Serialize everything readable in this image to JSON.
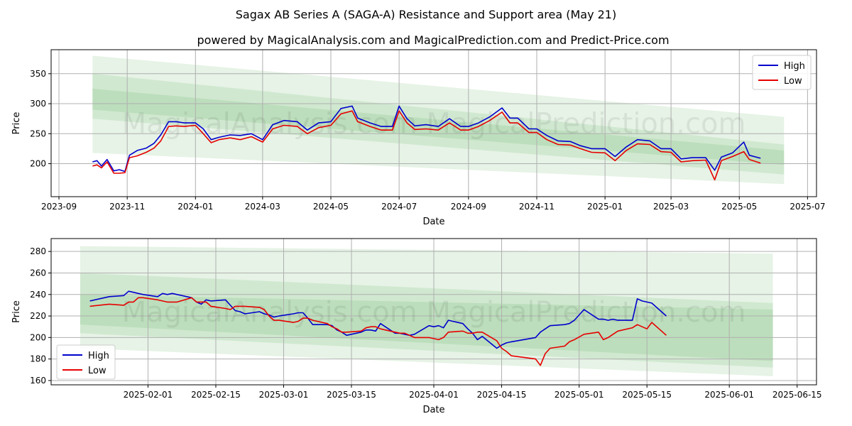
{
  "figure": {
    "title": "Sagax AB Series A (SAGA-A) Resistance and Support area (May 21)",
    "subtitle": "powered by MagicalAnalysis.com and MagicalPrediction.com and Predict-Price.com",
    "watermark": "MagicalAnalysis.com   MagicalPrediction.com"
  },
  "colors": {
    "high": "#0000cc",
    "low": "#e60000",
    "band": "#2e9e2e",
    "grid": "#b0b0b0"
  },
  "chart_data": [
    {
      "type": "line",
      "xlabel": "Date",
      "ylabel": "Price",
      "xlim": [
        "2023-08-25",
        "2025-07-09"
      ],
      "ylim": [
        145,
        390
      ],
      "x_ticks": [
        "2023-09",
        "2023-11",
        "2024-01",
        "2024-03",
        "2024-05",
        "2024-07",
        "2024-09",
        "2024-11",
        "2025-01",
        "2025-03",
        "2025-05",
        "2025-07"
      ],
      "y_ticks": [
        200,
        250,
        300,
        350
      ],
      "grid": true,
      "legend": "top-right",
      "legend_entries": [
        "High",
        "Low"
      ],
      "bands": [
        {
          "x": [
            "2023-10-01",
            "2025-06-10"
          ],
          "upper": [
            380,
            278
          ],
          "lower": [
            218,
            166
          ],
          "opacity": 0.12
        },
        {
          "x": [
            "2023-10-01",
            "2025-06-10"
          ],
          "upper": [
            350,
            232
          ],
          "lower": [
            275,
            182
          ],
          "opacity": 0.12
        },
        {
          "x": [
            "2023-10-01",
            "2025-06-10"
          ],
          "upper": [
            325,
            222
          ],
          "lower": [
            290,
            198
          ],
          "opacity": 0.12
        }
      ],
      "series": [
        {
          "name": "High",
          "x": [
            "2023-10-01",
            "2023-10-05",
            "2023-10-09",
            "2023-10-14",
            "2023-10-20",
            "2023-10-25",
            "2023-10-30",
            "2023-11-03",
            "2023-11-10",
            "2023-11-18",
            "2023-11-25",
            "2023-12-01",
            "2023-12-08",
            "2023-12-15",
            "2023-12-22",
            "2024-01-01",
            "2024-01-08",
            "2024-01-15",
            "2024-01-22",
            "2024-02-01",
            "2024-02-10",
            "2024-02-20",
            "2024-03-01",
            "2024-03-10",
            "2024-03-20",
            "2024-04-01",
            "2024-04-10",
            "2024-04-20",
            "2024-05-01",
            "2024-05-10",
            "2024-05-20",
            "2024-05-25",
            "2024-06-05",
            "2024-06-15",
            "2024-06-25",
            "2024-07-01",
            "2024-07-08",
            "2024-07-15",
            "2024-07-25",
            "2024-08-05",
            "2024-08-15",
            "2024-08-25",
            "2024-09-01",
            "2024-09-10",
            "2024-09-20",
            "2024-10-01",
            "2024-10-08",
            "2024-10-15",
            "2024-10-25",
            "2024-11-01",
            "2024-11-10",
            "2024-11-20",
            "2024-12-01",
            "2024-12-10",
            "2024-12-20",
            "2025-01-01",
            "2025-01-10",
            "2025-01-20",
            "2025-01-30",
            "2025-02-10",
            "2025-02-20",
            "2025-03-01",
            "2025-03-10",
            "2025-03-20",
            "2025-04-01",
            "2025-04-09",
            "2025-04-15",
            "2025-04-25",
            "2025-05-05",
            "2025-05-10",
            "2025-05-20"
          ],
          "y": [
            203,
            205,
            196,
            207,
            188,
            190,
            187,
            214,
            222,
            226,
            234,
            248,
            270,
            270,
            268,
            268,
            258,
            240,
            244,
            248,
            247,
            250,
            240,
            265,
            272,
            270,
            256,
            268,
            270,
            292,
            296,
            276,
            268,
            262,
            262,
            296,
            275,
            263,
            265,
            262,
            275,
            262,
            262,
            268,
            278,
            293,
            276,
            276,
            258,
            258,
            247,
            238,
            237,
            230,
            225,
            225,
            212,
            228,
            240,
            238,
            225,
            225,
            208,
            210,
            210,
            189,
            211,
            218,
            236,
            214,
            209
          ]
        },
        {
          "name": "Low",
          "x": [
            "2023-10-01",
            "2023-10-05",
            "2023-10-09",
            "2023-10-14",
            "2023-10-20",
            "2023-10-25",
            "2023-10-30",
            "2023-11-03",
            "2023-11-10",
            "2023-11-18",
            "2023-11-25",
            "2023-12-01",
            "2023-12-08",
            "2023-12-15",
            "2023-12-22",
            "2024-01-01",
            "2024-01-08",
            "2024-01-15",
            "2024-01-22",
            "2024-02-01",
            "2024-02-10",
            "2024-02-20",
            "2024-03-01",
            "2024-03-10",
            "2024-03-20",
            "2024-04-01",
            "2024-04-10",
            "2024-04-20",
            "2024-05-01",
            "2024-05-10",
            "2024-05-20",
            "2024-05-25",
            "2024-06-05",
            "2024-06-15",
            "2024-06-25",
            "2024-07-01",
            "2024-07-08",
            "2024-07-15",
            "2024-07-25",
            "2024-08-05",
            "2024-08-15",
            "2024-08-25",
            "2024-09-01",
            "2024-09-10",
            "2024-09-20",
            "2024-10-01",
            "2024-10-08",
            "2024-10-15",
            "2024-10-25",
            "2024-11-01",
            "2024-11-10",
            "2024-11-20",
            "2024-12-01",
            "2024-12-10",
            "2024-12-20",
            "2025-01-01",
            "2025-01-10",
            "2025-01-20",
            "2025-01-30",
            "2025-02-10",
            "2025-02-20",
            "2025-03-01",
            "2025-03-10",
            "2025-03-20",
            "2025-04-01",
            "2025-04-09",
            "2025-04-15",
            "2025-04-25",
            "2025-05-05",
            "2025-05-10",
            "2025-05-20"
          ],
          "y": [
            196,
            198,
            193,
            203,
            184,
            184,
            185,
            210,
            213,
            219,
            226,
            238,
            262,
            263,
            262,
            264,
            250,
            235,
            240,
            243,
            240,
            245,
            236,
            258,
            264,
            262,
            250,
            260,
            264,
            283,
            288,
            270,
            262,
            256,
            256,
            288,
            268,
            257,
            258,
            256,
            268,
            256,
            256,
            262,
            272,
            286,
            268,
            268,
            252,
            252,
            240,
            232,
            231,
            225,
            219,
            218,
            205,
            222,
            233,
            232,
            220,
            219,
            203,
            205,
            206,
            173,
            205,
            212,
            220,
            207,
            201
          ]
        }
      ]
    },
    {
      "type": "line",
      "xlabel": "Date",
      "ylabel": "Price",
      "xlim": [
        "2025-01-12",
        "2025-06-19"
      ],
      "ylim": [
        156,
        292
      ],
      "x_ticks": [
        "2025-02-01",
        "2025-02-15",
        "2025-03-01",
        "2025-03-15",
        "2025-04-01",
        "2025-04-15",
        "2025-05-01",
        "2025-05-15",
        "2025-06-01",
        "2025-06-15"
      ],
      "y_ticks": [
        160,
        180,
        200,
        220,
        240,
        260,
        280
      ],
      "grid": true,
      "legend": "bottom-left",
      "legend_entries": [
        "High",
        "Low"
      ],
      "bands": [
        {
          "x": [
            "2025-01-18",
            "2025-06-10"
          ],
          "upper": [
            285,
            278
          ],
          "lower": [
            190,
            164
          ],
          "opacity": 0.12
        },
        {
          "x": [
            "2025-01-18",
            "2025-06-10"
          ],
          "upper": [
            260,
            232
          ],
          "lower": [
            204,
            172
          ],
          "opacity": 0.12
        },
        {
          "x": [
            "2025-01-18",
            "2025-06-10"
          ],
          "upper": [
            240,
            226
          ],
          "lower": [
            212,
            178
          ],
          "opacity": 0.12
        }
      ],
      "series": [
        {
          "name": "High",
          "x": [
            "2025-01-20",
            "2025-01-24",
            "2025-01-27",
            "2025-01-28",
            "2025-01-29",
            "2025-01-30",
            "2025-01-31",
            "2025-02-03",
            "2025-02-04",
            "2025-02-05",
            "2025-02-06",
            "2025-02-07",
            "2025-02-10",
            "2025-02-11",
            "2025-02-12",
            "2025-02-13",
            "2025-02-14",
            "2025-02-17",
            "2025-02-18",
            "2025-02-19",
            "2025-02-20",
            "2025-02-21",
            "2025-02-24",
            "2025-02-25",
            "2025-02-26",
            "2025-02-27",
            "2025-02-28",
            "2025-03-03",
            "2025-03-04",
            "2025-03-05",
            "2025-03-06",
            "2025-03-07",
            "2025-03-10",
            "2025-03-11",
            "2025-03-12",
            "2025-03-13",
            "2025-03-14",
            "2025-03-17",
            "2025-03-18",
            "2025-03-19",
            "2025-03-20",
            "2025-03-21",
            "2025-03-24",
            "2025-03-25",
            "2025-03-26",
            "2025-03-27",
            "2025-03-28",
            "2025-03-31",
            "2025-04-01",
            "2025-04-02",
            "2025-04-03",
            "2025-04-04",
            "2025-04-07",
            "2025-04-08",
            "2025-04-09",
            "2025-04-10",
            "2025-04-11",
            "2025-04-14",
            "2025-04-15",
            "2025-04-16",
            "2025-04-17",
            "2025-04-22",
            "2025-04-23",
            "2025-04-24",
            "2025-04-25",
            "2025-04-28",
            "2025-04-29",
            "2025-04-30",
            "2025-05-02",
            "2025-05-05",
            "2025-05-06",
            "2025-05-07",
            "2025-05-08",
            "2025-05-09",
            "2025-05-12",
            "2025-05-13",
            "2025-05-14",
            "2025-05-15",
            "2025-05-16",
            "2025-05-19"
          ],
          "y": [
            234,
            238,
            239,
            243,
            242,
            241,
            240,
            238,
            241,
            240,
            241,
            240,
            237,
            233,
            231,
            235,
            234,
            235,
            230,
            225,
            224,
            222,
            224,
            222,
            221,
            219,
            220,
            222,
            223,
            223,
            218,
            212,
            212,
            211,
            207,
            205,
            202,
            205,
            207,
            207,
            206,
            213,
            204,
            204,
            203,
            202,
            203,
            211,
            210,
            211,
            209,
            216,
            213,
            208,
            204,
            198,
            201,
            190,
            193,
            195,
            196,
            200,
            205,
            208,
            211,
            212,
            213,
            216,
            226,
            217,
            217,
            216,
            217,
            216,
            216,
            236,
            234,
            233,
            232,
            220
          ],
          "x_fix": null
        },
        {
          "name": "Low",
          "x": [
            "2025-01-20",
            "2025-01-24",
            "2025-01-27",
            "2025-01-28",
            "2025-01-29",
            "2025-01-30",
            "2025-01-31",
            "2025-02-03",
            "2025-02-04",
            "2025-02-05",
            "2025-02-06",
            "2025-02-07",
            "2025-02-10",
            "2025-02-11",
            "2025-02-12",
            "2025-02-13",
            "2025-02-14",
            "2025-02-17",
            "2025-02-18",
            "2025-02-19",
            "2025-02-20",
            "2025-02-21",
            "2025-02-24",
            "2025-02-25",
            "2025-02-26",
            "2025-02-27",
            "2025-02-28",
            "2025-03-03",
            "2025-03-04",
            "2025-03-05",
            "2025-03-06",
            "2025-03-07",
            "2025-03-10",
            "2025-03-11",
            "2025-03-12",
            "2025-03-13",
            "2025-03-14",
            "2025-03-17",
            "2025-03-18",
            "2025-03-19",
            "2025-03-20",
            "2025-03-21",
            "2025-03-24",
            "2025-03-25",
            "2025-03-26",
            "2025-03-27",
            "2025-03-28",
            "2025-03-31",
            "2025-04-01",
            "2025-04-02",
            "2025-04-03",
            "2025-04-04",
            "2025-04-07",
            "2025-04-08",
            "2025-04-09",
            "2025-04-10",
            "2025-04-11",
            "2025-04-14",
            "2025-04-15",
            "2025-04-16",
            "2025-04-17",
            "2025-04-22",
            "2025-04-23",
            "2025-04-24",
            "2025-04-25",
            "2025-04-28",
            "2025-04-29",
            "2025-04-30",
            "2025-05-02",
            "2025-05-05",
            "2025-05-06",
            "2025-05-07",
            "2025-05-08",
            "2025-05-09",
            "2025-05-12",
            "2025-05-13",
            "2025-05-14",
            "2025-05-15",
            "2025-05-16",
            "2025-05-19"
          ],
          "y": [
            229,
            231,
            230,
            233,
            233,
            237,
            237,
            235,
            234,
            233,
            233,
            233,
            237,
            233,
            233,
            233,
            229,
            227,
            226,
            229,
            229,
            229,
            228,
            226,
            220,
            216,
            216,
            214,
            215,
            218,
            218,
            216,
            213,
            210,
            208,
            205,
            205,
            206,
            209,
            210,
            210,
            208,
            205,
            204,
            204,
            202,
            200,
            200,
            199,
            198,
            200,
            205,
            206,
            204,
            204,
            205,
            205,
            197,
            190,
            187,
            183,
            180,
            174,
            185,
            190,
            192,
            196,
            198,
            203,
            205,
            198,
            200,
            203,
            206,
            209,
            212,
            210,
            208,
            214,
            202
          ],
          "x_fix": null
        }
      ]
    }
  ]
}
